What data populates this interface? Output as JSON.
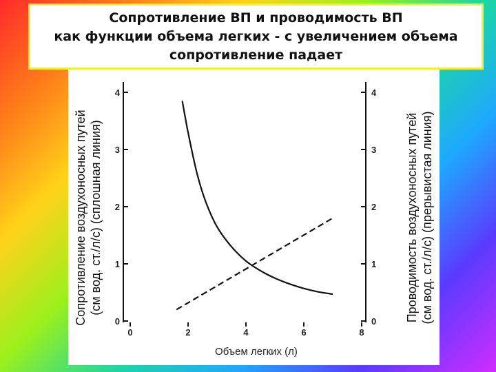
{
  "title": {
    "lines": [
      "Сопротивление ВП и проводимость ВП",
      "как функции объема легких  - с увеличением объема",
      "сопротивление падает"
    ]
  },
  "chart_data": {
    "type": "line",
    "xlabel": "Объем легких (л)",
    "ylabel_left": [
      "Сопротивление воздухоносных путей",
      "(см вод. ст./л/с) (сплошная линия)"
    ],
    "ylabel_right": [
      "Проводимость воздухоносных путей",
      "(см вод. ст./л/с) (прерывистая линия)"
    ],
    "xlim": [
      0,
      8
    ],
    "ylim": [
      0,
      4
    ],
    "x_ticks": [
      "0",
      "2",
      "4",
      "6",
      "8"
    ],
    "y_ticks_left": [
      "0",
      "1",
      "2",
      "3",
      "4"
    ],
    "y_ticks_right": [
      "0",
      "1",
      "2",
      "3",
      "4"
    ],
    "grid": false,
    "series": [
      {
        "style": "solid",
        "x": [
          1.8,
          2.0,
          2.3,
          2.6,
          3.0,
          3.5,
          4.0,
          4.5,
          5.0,
          5.5,
          6.0,
          6.5,
          7.0
        ],
        "y": [
          3.85,
          3.3,
          2.6,
          2.1,
          1.65,
          1.3,
          1.05,
          0.88,
          0.75,
          0.65,
          0.57,
          0.51,
          0.47
        ]
      },
      {
        "style": "dashed",
        "x": [
          1.6,
          7.0
        ],
        "y": [
          0.2,
          1.8
        ]
      }
    ],
    "colors": {
      "line": "#111111",
      "background": "#ffffff"
    }
  }
}
